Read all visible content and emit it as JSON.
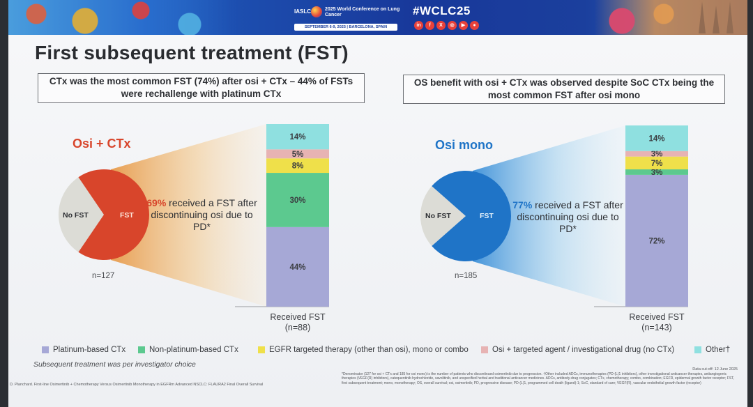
{
  "banner": {
    "org": "IASLC",
    "conference_name": "2025 World Conference on Lung Cancer",
    "dates_location": "SEPTEMBER 6-9, 2025 | BARCELONA, SPAIN",
    "hashtag": "#WCLC25",
    "social_icons": [
      "in-icon",
      "f-icon",
      "x-icon",
      "camera-icon",
      "video-icon",
      "podcast-icon"
    ]
  },
  "slide": {
    "title": "First subsequent treatment (FST)",
    "callout_left": "CTx was the most common FST (74%) after osi + CTx – 44% of FSTs were rechallenge with platinum CTx",
    "callout_right": "OS benefit with osi + CTx was observed despite SoC CTx being the most common FST after osi mono",
    "subsequent_note": "Subsequent treatment was per investigator choice",
    "reference": "D. Planchard. First-line Osimertinib + Chemotherapy Versus Osimertinib Monotherapy in EGFRm Advanced NSCLC: FLAURA2 Final Overall Survival",
    "data_cutoff": "Data cut-off: 12 June 2025",
    "footnote": "*Denominator (127 for osi + CTx and 185 for osi mono) is the number of patients who discontinued osimertinib due to progression. †Other included ADCs, immunotherapies (PD-(L)1 inhibitors), other investigational anticancer therapies, antiangiogenic therapies (VEGF(R) inhibitors), catequentinib hydrochloride, savolitinib, and unspecified herbal and traditional anticancer medicines. ADCs, antibody-drug conjugates; CTx, chemotherapy; combo, combination; EGFR, epidermal growth factor receptor; FST, first subsequent treatment; mono, monotherapy; OS, overall survival; osi, osimertinib; PD, progressive disease; PD-(L)1, programmed cell death (ligand)-1; SoC, standard of care; VEGF(R), vascular endothelial growth factor (receptor)"
  },
  "colors": {
    "osi_ctx": "#d8452b",
    "osi_mono": "#1f74c7",
    "no_fst": "#dcdcd6"
  },
  "chart_data": [
    {
      "type": "pie",
      "arm": "Osi + CTx",
      "n_label": "n=127",
      "slices": [
        {
          "label": "FST",
          "value": 69
        },
        {
          "label": "No FST",
          "value": 31
        }
      ],
      "received_pct": "69%",
      "received_text": "received a FST after discontinuing osi due to PD*"
    },
    {
      "type": "bar",
      "stacked": true,
      "arm": "Osi + CTx",
      "caption": "Received FST",
      "n_label": "(n=88)",
      "segments": [
        {
          "category": "Platinum-based CTx",
          "value": 44,
          "label": "44%"
        },
        {
          "category": "Non-platinum-based CTx",
          "value": 30,
          "label": "30%"
        },
        {
          "category": "EGFR targeted therapy (other than osi), mono or combo",
          "value": 8,
          "label": "8%"
        },
        {
          "category": "Osi + targeted agent / investigational drug (no CTx)",
          "value": 5,
          "label": "5%"
        },
        {
          "category": "Other†",
          "value": 14,
          "label": "14%"
        }
      ]
    },
    {
      "type": "pie",
      "arm": "Osi mono",
      "n_label": "n=185",
      "slices": [
        {
          "label": "FST",
          "value": 77
        },
        {
          "label": "No FST",
          "value": 23
        }
      ],
      "received_pct": "77%",
      "received_text": "received a FST after discontinuing osi due to PD*"
    },
    {
      "type": "bar",
      "stacked": true,
      "arm": "Osi mono",
      "caption": "Received FST",
      "n_label": "(n=143)",
      "segments": [
        {
          "category": "Platinum-based CTx",
          "value": 72,
          "label": "72%"
        },
        {
          "category": "Non-platinum-based CTx",
          "value": 3,
          "label": "3%"
        },
        {
          "category": "EGFR targeted therapy (other than osi), mono or combo",
          "value": 7,
          "label": "7%"
        },
        {
          "category": "Osi + targeted agent / investigational drug (no CTx)",
          "value": 3,
          "label": "3%"
        },
        {
          "category": "Other†",
          "value": 14,
          "label": "14%"
        }
      ]
    }
  ],
  "legend": [
    {
      "label": "Platinum-based CTx",
      "color": "#a6a8d6"
    },
    {
      "label": "Non-platinum-based CTx",
      "color": "#5cc98f"
    },
    {
      "label": "EGFR targeted therapy (other than osi), mono or combo",
      "color": "#efe04a"
    },
    {
      "label": "Osi + targeted agent / investigational drug (no CTx)",
      "color": "#e7b3b3"
    },
    {
      "label": "Other†",
      "color": "#8fe0e0"
    }
  ]
}
